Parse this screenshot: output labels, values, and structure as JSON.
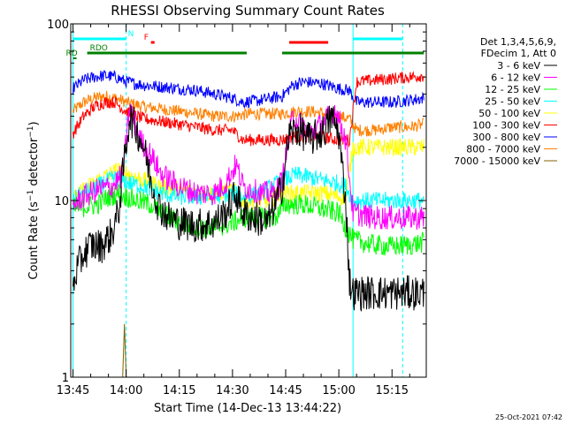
{
  "chart_data": {
    "type": "line",
    "title": "RHESSI Observing Summary Count Rates",
    "xlabel": "Start Time (14-Dec-13 13:44:22)",
    "ylabel_main": "Count Rate (s",
    "ylabel_sup": "−1",
    "ylabel_rest": " detector",
    "ylabel_end": ")",
    "timestamp": "25-Oct-2021 07:42",
    "y_scale": "log",
    "ylim": [
      1,
      100
    ],
    "xlim": [
      "13:44:22",
      "15:24:40"
    ],
    "y_ticks": [
      {
        "value": 1,
        "label": "1"
      },
      {
        "value": 10,
        "label": "10"
      },
      {
        "value": 100,
        "label": "100"
      }
    ],
    "x_ticks": [
      "13:45",
      "14:00",
      "14:15",
      "14:30",
      "14:45",
      "15:00",
      "15:15"
    ],
    "legend_placement": "right",
    "legend_header": [
      "Det 1,3,4,5,6,9,",
      "FDecim 1, Att 0"
    ],
    "series": [
      {
        "name": "3 - 6 keV",
        "color": "#000000",
        "x": [
          "13:45",
          "13:46",
          "13:48",
          "13:50",
          "13:53",
          "13:56",
          "13:58",
          "13:59",
          "14:01",
          "14:03",
          "14:05",
          "14:07",
          "14:09",
          "14:12",
          "14:15",
          "14:20",
          "14:25",
          "14:28",
          "14:31",
          "14:33",
          "14:36",
          "14:40",
          "14:44",
          "14:46",
          "14:49",
          "14:52",
          "14:56",
          "14:58",
          "15:00",
          "15:02",
          "15:03",
          "15:04",
          "15:10",
          "15:15",
          "15:20",
          "15:24"
        ],
        "y": [
          3.2,
          4.0,
          5.0,
          5.6,
          5.5,
          6.5,
          9.0,
          14,
          30,
          25,
          20,
          13,
          9.5,
          8.0,
          7.5,
          7.2,
          7.5,
          8.5,
          11,
          8.5,
          8.0,
          7.5,
          12,
          24,
          25,
          22,
          25,
          30,
          24,
          9.5,
          3.5,
          3.0,
          3.0,
          3.0,
          3.0,
          3.0
        ]
      },
      {
        "name": "6 - 12 keV",
        "color": "#ff00ff",
        "x": [
          "13:45",
          "13:48",
          "13:52",
          "13:56",
          "13:59",
          "14:01",
          "14:04",
          "14:07",
          "14:10",
          "14:15",
          "14:20",
          "14:25",
          "14:28",
          "14:31",
          "14:33",
          "14:38",
          "14:42",
          "14:44",
          "14:47",
          "14:52",
          "14:56",
          "14:59",
          "15:02",
          "15:04",
          "15:10",
          "15:15",
          "15:20",
          "15:24"
        ],
        "y": [
          9.5,
          10.5,
          11.5,
          12,
          14,
          34,
          22,
          18,
          14,
          12,
          11,
          11,
          12.5,
          16,
          12,
          11,
          11,
          13,
          30,
          24,
          28,
          33,
          22,
          8.5,
          8.0,
          8.0,
          8.0,
          8.0
        ]
      },
      {
        "name": "12 - 25 keV",
        "color": "#00ff00",
        "x": [
          "13:45",
          "13:48",
          "13:52",
          "13:55",
          "13:58",
          "14:00",
          "14:03",
          "14:07",
          "14:10",
          "14:15",
          "14:20",
          "14:25",
          "14:30",
          "14:33",
          "14:38",
          "14:42",
          "14:45",
          "14:50",
          "14:55",
          "15:00",
          "15:02",
          "15:04",
          "15:10",
          "15:15",
          "15:20",
          "15:24"
        ],
        "y": [
          9.0,
          9.2,
          9.5,
          10.5,
          11,
          10.5,
          10,
          9.5,
          8.5,
          7.5,
          7.0,
          7.0,
          7.5,
          8.0,
          8.0,
          8.0,
          9.5,
          9.5,
          9.0,
          8.5,
          7.0,
          6.0,
          5.6,
          5.5,
          5.6,
          5.8
        ]
      },
      {
        "name": "25 - 50 keV",
        "color": "#00ffff",
        "x": [
          "13:45",
          "13:48",
          "13:52",
          "13:55",
          "13:58",
          "14:01",
          "14:05",
          "14:10",
          "14:15",
          "14:20",
          "14:25",
          "14:30",
          "14:33",
          "14:38",
          "14:44",
          "14:48",
          "14:52",
          "14:56",
          "15:00",
          "15:02",
          "15:04",
          "15:10",
          "15:15",
          "15:20",
          "15:24"
        ],
        "y": [
          10,
          11,
          12,
          13,
          13.5,
          12.5,
          12,
          11,
          10.5,
          10.5,
          10.5,
          11,
          10.5,
          11,
          13,
          14,
          13.5,
          13,
          12.5,
          12,
          10,
          10,
          10,
          10,
          10
        ]
      },
      {
        "name": "50 - 100 keV",
        "color": "#ffff00",
        "x": [
          "13:45",
          "13:48",
          "13:52",
          "13:55",
          "13:58",
          "14:01",
          "14:05",
          "14:10",
          "14:15",
          "14:20",
          "14:25",
          "14:30",
          "14:33",
          "14:36",
          "14:40",
          "14:44",
          "14:48",
          "14:52",
          "14:56",
          "15:00",
          "15:02",
          "15:04",
          "15:10",
          "15:15",
          "15:20",
          "15:24"
        ],
        "y": [
          10,
          11.5,
          13,
          14,
          15,
          14,
          13,
          12,
          11.5,
          11,
          11,
          11.5,
          10,
          10,
          10,
          11,
          11,
          11,
          11,
          10.5,
          10.5,
          20,
          20,
          20,
          20,
          20
        ]
      },
      {
        "name": "100 - 300 keV",
        "color": "#ff0000",
        "x": [
          "13:45",
          "13:48",
          "13:51",
          "13:54",
          "13:57",
          "13:59",
          "14:01",
          "14:05",
          "14:10",
          "14:15",
          "14:20",
          "14:25",
          "14:30",
          "14:33",
          "14:36",
          "14:40",
          "14:44",
          "14:47",
          "14:50",
          "14:55",
          "15:00",
          "15:03",
          "15:05",
          "15:10",
          "15:15",
          "15:20",
          "15:24"
        ],
        "y": [
          24,
          30,
          34,
          36,
          36,
          33,
          31,
          29,
          28,
          27,
          26,
          25,
          25,
          22,
          22,
          22,
          22,
          23,
          23,
          23,
          22,
          22,
          47,
          48,
          49,
          50,
          51
        ]
      },
      {
        "name": "300 - 800 keV",
        "color": "#0000ff",
        "x": [
          "13:45",
          "13:48",
          "13:51",
          "13:54",
          "13:57",
          "14:00",
          "14:05",
          "14:10",
          "14:15",
          "14:20",
          "14:25",
          "14:30",
          "14:33",
          "14:38",
          "14:44",
          "14:47",
          "14:50",
          "14:55",
          "15:00",
          "15:03",
          "15:05",
          "15:10",
          "15:15",
          "15:20",
          "15:24"
        ],
        "y": [
          43,
          48,
          50,
          51,
          50,
          47,
          45,
          44,
          43,
          42,
          40,
          38,
          36,
          37,
          39,
          45,
          47,
          46,
          43,
          42,
          36,
          36,
          36,
          37,
          38
        ]
      },
      {
        "name": "800 - 7000 keV",
        "color": "#ff8000",
        "x": [
          "13:45",
          "13:48",
          "13:51",
          "13:54",
          "13:57",
          "14:00",
          "14:05",
          "14:10",
          "14:15",
          "14:20",
          "14:25",
          "14:30",
          "14:35",
          "14:40",
          "14:44",
          "14:48",
          "14:52",
          "14:56",
          "15:00",
          "15:03",
          "15:05",
          "15:10",
          "15:15",
          "15:20",
          "15:24"
        ],
        "y": [
          32,
          36,
          38,
          39,
          38,
          36,
          34,
          33,
          32,
          31,
          30,
          30,
          31,
          31,
          31,
          32,
          32,
          31,
          30,
          29,
          25,
          25,
          26,
          26,
          27
        ]
      },
      {
        "name": "7000 - 15000 keV",
        "color": "#806000",
        "x": [
          "13:45",
          "13:59",
          "13:59.5",
          "14:00",
          "15:24"
        ],
        "y": [
          1,
          1,
          2,
          1,
          1
        ]
      }
    ],
    "flag_bars": [
      {
        "label": "N",
        "color": "#00ffff",
        "segments": [
          [
            "13:45",
            "14:00"
          ],
          [
            "15:04",
            "15:18"
          ]
        ]
      },
      {
        "label": "F",
        "color": "#ff0000",
        "segments": [
          [
            "14:07",
            "14:08"
          ],
          [
            "14:46",
            "14:57"
          ]
        ]
      },
      {
        "label": "RDO",
        "color": "#008000",
        "segments": [
          [
            "13:49",
            "14:34"
          ],
          [
            "14:44",
            "15:24"
          ]
        ]
      },
      {
        "label": "RD",
        "color": "#008000",
        "segments": [
          [
            "13:45",
            "13:46"
          ]
        ]
      }
    ],
    "vertical_markers": [
      {
        "time": "13:45",
        "color": "#00ffff",
        "style": "solid"
      },
      {
        "time": "14:00",
        "color": "#00ffff",
        "style": "dashed"
      },
      {
        "time": "15:04",
        "color": "#00ffff",
        "style": "solid"
      },
      {
        "time": "15:18",
        "color": "#00ffff",
        "style": "dashed"
      }
    ]
  }
}
